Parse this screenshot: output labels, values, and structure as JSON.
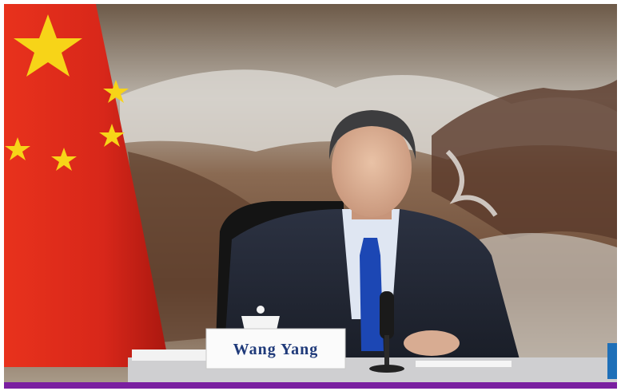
{
  "nameplate": {
    "text": "Wang Yang"
  }
}
